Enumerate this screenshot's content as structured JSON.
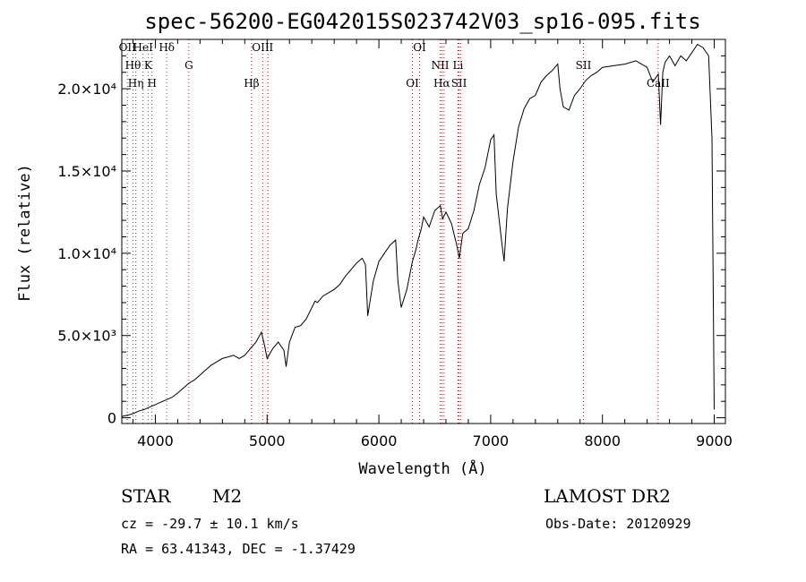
{
  "chart_data": {
    "type": "line",
    "title": "spec-56200-EG042015S023742V03_sp16-095.fits",
    "xlabel": "Wavelength (Å)",
    "ylabel": "Flux (relative)",
    "xlim": [
      3700,
      9100
    ],
    "ylim": [
      -350,
      23000
    ],
    "x_ticks": [
      4000,
      5000,
      6000,
      7000,
      8000,
      9000
    ],
    "x_tick_labels": [
      "4000",
      "5000",
      "6000",
      "7000",
      "8000",
      "9000"
    ],
    "y_ticks": [
      0,
      5000,
      10000,
      15000,
      20000
    ],
    "y_tick_labels": [
      "0",
      "5.0×10³",
      "1.0×10⁴",
      "1.5×10⁴",
      "2.0×10⁴"
    ],
    "grid": false,
    "spectrum": {
      "x": [
        3700,
        3750,
        3800,
        3850,
        3900,
        3950,
        4000,
        4050,
        4100,
        4150,
        4200,
        4250,
        4300,
        4350,
        4400,
        4450,
        4500,
        4550,
        4600,
        4650,
        4700,
        4750,
        4800,
        4850,
        4900,
        4950,
        4980,
        5000,
        5050,
        5100,
        5150,
        5170,
        5200,
        5250,
        5300,
        5350,
        5400,
        5430,
        5450,
        5500,
        5550,
        5600,
        5650,
        5700,
        5750,
        5800,
        5850,
        5880,
        5900,
        5950,
        6000,
        6050,
        6100,
        6150,
        6170,
        6200,
        6250,
        6300,
        6330,
        6350,
        6380,
        6400,
        6450,
        6500,
        6550,
        6570,
        6600,
        6650,
        6700,
        6720,
        6750,
        6800,
        6850,
        6900,
        6950,
        7000,
        7030,
        7050,
        7100,
        7120,
        7150,
        7200,
        7250,
        7300,
        7350,
        7400,
        7450,
        7500,
        7550,
        7600,
        7620,
        7650,
        7700,
        7750,
        7800,
        7850,
        7900,
        7950,
        8000,
        8100,
        8200,
        8300,
        8400,
        8450,
        8500,
        8520,
        8540,
        8560,
        8600,
        8650,
        8700,
        8750,
        8800,
        8850,
        8900,
        8950,
        8980,
        9000
      ],
      "y": [
        80,
        150,
        250,
        400,
        500,
        650,
        800,
        950,
        1100,
        1250,
        1500,
        1800,
        2100,
        2300,
        2600,
        2900,
        3200,
        3400,
        3600,
        3700,
        3800,
        3600,
        3800,
        4200,
        4600,
        5200,
        4300,
        3600,
        4200,
        4600,
        4100,
        3100,
        4600,
        5500,
        5600,
        6000,
        6700,
        7100,
        7000,
        7400,
        7600,
        7800,
        8100,
        8600,
        9000,
        9400,
        9700,
        9300,
        6200,
        8300,
        9500,
        10000,
        10500,
        10800,
        8300,
        6700,
        7800,
        9500,
        10200,
        10800,
        11500,
        12200,
        11600,
        12600,
        12900,
        12100,
        12500,
        11800,
        10400,
        9700,
        11200,
        11500,
        12600,
        14200,
        15200,
        16900,
        17200,
        13600,
        10600,
        9500,
        12700,
        15600,
        17700,
        18800,
        19400,
        19600,
        20400,
        20800,
        21100,
        21500,
        20000,
        18900,
        18700,
        19600,
        20000,
        20500,
        20800,
        21000,
        21300,
        21400,
        21500,
        21700,
        21300,
        20400,
        20900,
        17800,
        21000,
        21600,
        22000,
        21400,
        22000,
        21700,
        22200,
        22700,
        22500,
        22000,
        17000,
        500
      ]
    },
    "lines": [
      {
        "x": 3750,
        "label": "OII"
      },
      {
        "x": 3800,
        "label": "Hθ"
      },
      {
        "x": 3825,
        "label": "Hη"
      },
      {
        "x": 3890,
        "label": "HeI"
      },
      {
        "x": 3935,
        "label": "K"
      },
      {
        "x": 3970,
        "label": "H"
      },
      {
        "x": 4102,
        "label": "Hδ"
      },
      {
        "x": 4300,
        "label": "G"
      },
      {
        "x": 4861,
        "label": "Hβ"
      },
      {
        "x": 4960,
        "label": "OIII"
      },
      {
        "x": 5007,
        "label": ""
      },
      {
        "x": 6300,
        "label": "OI"
      },
      {
        "x": 6364,
        "label": "OI"
      },
      {
        "x": 6548,
        "label": "NII"
      },
      {
        "x": 6563,
        "label": "Hα"
      },
      {
        "x": 6583,
        "label": ""
      },
      {
        "x": 6708,
        "label": "Li"
      },
      {
        "x": 6717,
        "label": "SII"
      },
      {
        "x": 6731,
        "label": ""
      },
      {
        "x": 7830,
        "label": "SII"
      },
      {
        "x": 8498,
        "label": "CaII"
      }
    ]
  },
  "info": {
    "object_type": "STAR",
    "subclass": "M2",
    "survey": "LAMOST DR2",
    "cz": "cz = -29.7 ± 10.1 km/s",
    "obs_date": "Obs-Date: 20120929",
    "radec": "RA =  63.41343, DEC =  -1.37429"
  },
  "colors": {
    "axis": "#000000",
    "spectrum": "#000000",
    "line_markers_red": "#cc0000",
    "line_markers_gray": "#555555"
  }
}
